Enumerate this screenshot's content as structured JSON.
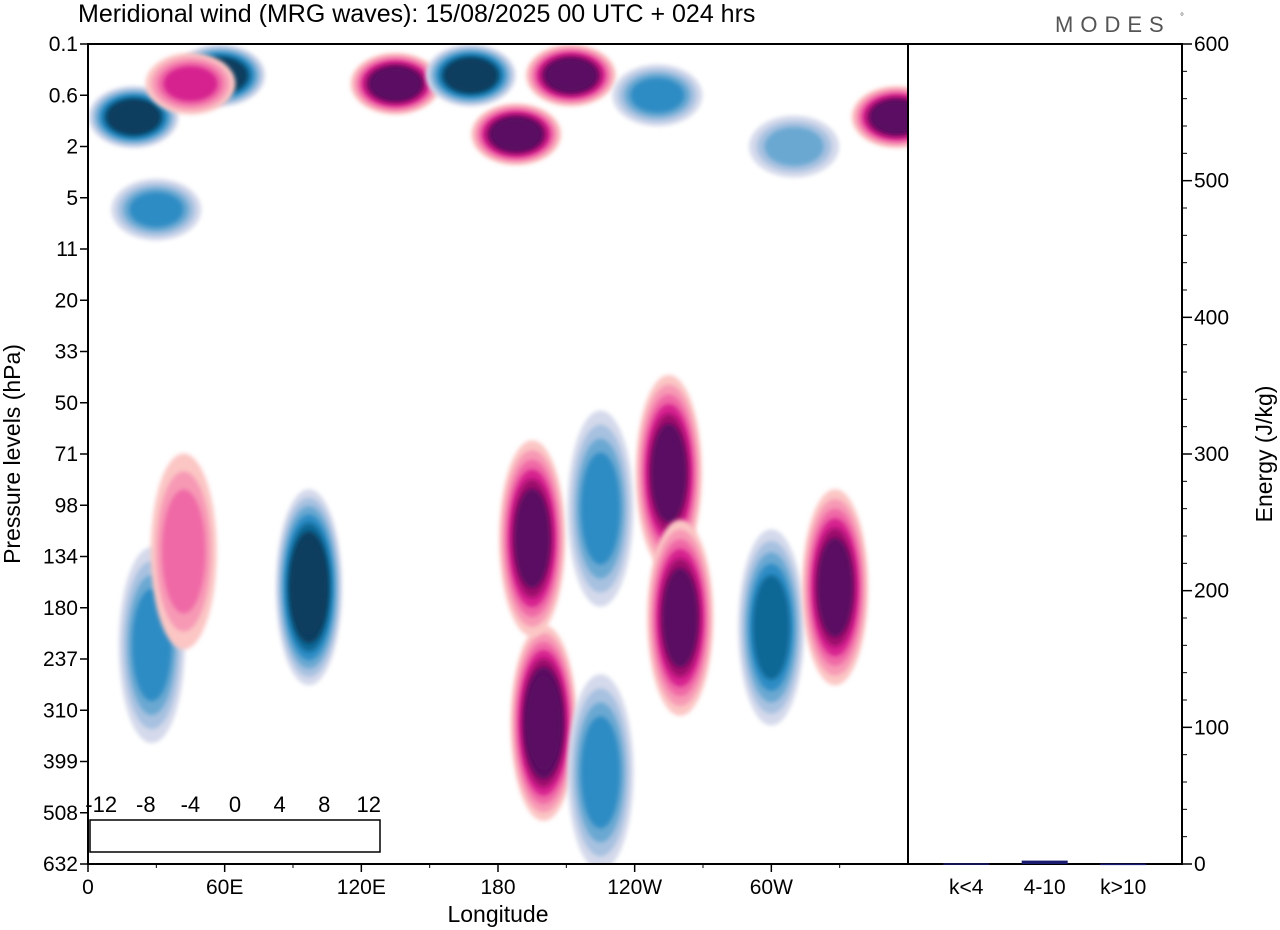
{
  "chart_data": {
    "type": "heatmap",
    "title": "Meridional wind (MRG waves):  15/08/2025  00 UTC  + 024 hrs",
    "logo": "MODES",
    "logo_mark": "°",
    "xlabel": "Longitude",
    "ylabel": "Pressure levels (hPa)",
    "x_ticks": [
      "0",
      "60E",
      "120E",
      "180",
      "120W",
      "60W"
    ],
    "x_tick_lon": [
      0,
      60,
      120,
      180,
      240,
      300
    ],
    "xlim": [
      0,
      360
    ],
    "y_ticks": [
      "0.1",
      "0.6",
      "2",
      "5",
      "11",
      "20",
      "33",
      "50",
      "71",
      "98",
      "134",
      "180",
      "237",
      "310",
      "399",
      "508",
      "632"
    ],
    "colorbar": {
      "labels": [
        "-12",
        "-8",
        "-4",
        "0",
        "4",
        "8",
        "12"
      ],
      "levels": [
        -14,
        -12,
        -10,
        -8,
        -6,
        -4,
        -2,
        2,
        4,
        6,
        8,
        10,
        12,
        14
      ],
      "colors": [
        "#0a3d5e",
        "#0e6796",
        "#2f8cc4",
        "#6aa8d2",
        "#a7c1e0",
        "#d4d9eb",
        "#ffffff",
        "#fbc6c4",
        "#f799b5",
        "#ef69a6",
        "#d6208f",
        "#9e0b6c",
        "#5a0762"
      ]
    },
    "contour_features": [
      {
        "lon": 20,
        "level": "1",
        "value": -14
      },
      {
        "lon": 58,
        "level": "0.3",
        "value": -14
      },
      {
        "lon": 45,
        "level": "0.4",
        "value": 8
      },
      {
        "lon": 135,
        "level": "0.4",
        "value": 14
      },
      {
        "lon": 168,
        "level": "0.3",
        "value": -14
      },
      {
        "lon": 212,
        "level": "0.3",
        "value": 14
      },
      {
        "lon": 188,
        "level": "1.5",
        "value": 14
      },
      {
        "lon": 250,
        "level": "0.6",
        "value": -8
      },
      {
        "lon": 310,
        "level": "2",
        "value": -6
      },
      {
        "lon": 355,
        "level": "1",
        "value": 14
      },
      {
        "lon": 30,
        "level": "6",
        "value": -8
      },
      {
        "lon": 97,
        "level": "160",
        "value": -14
      },
      {
        "lon": 200,
        "level": "330",
        "value": 14
      },
      {
        "lon": 195,
        "level": "120",
        "value": 12
      },
      {
        "lon": 225,
        "level": "100",
        "value": -8
      },
      {
        "lon": 255,
        "level": "80",
        "value": 12
      },
      {
        "lon": 260,
        "level": "190",
        "value": 12
      },
      {
        "lon": 300,
        "level": "200",
        "value": -10
      },
      {
        "lon": 328,
        "level": "160",
        "value": 12
      },
      {
        "lon": 225,
        "level": "420",
        "value": -8
      },
      {
        "lon": 28,
        "level": "220",
        "value": -8
      },
      {
        "lon": 42,
        "level": "130",
        "value": 6
      }
    ],
    "energy_bars": {
      "categories": [
        "k<4",
        "4-10",
        "k>10"
      ],
      "values": [
        0.5,
        2.5,
        0.3
      ],
      "ylabel": "Energy (J/kg)",
      "ylim": [
        0,
        600
      ],
      "y_ticks": [
        "0",
        "100",
        "200",
        "300",
        "400",
        "500",
        "600"
      ],
      "bar_color": "#1a1a6e"
    }
  }
}
